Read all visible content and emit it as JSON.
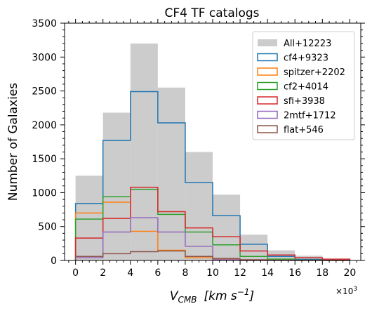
{
  "chart_data": {
    "type": "histogram",
    "title": "CF4 TF catalogs",
    "xlabel_main": "V",
    "xlabel_sub": "CMB",
    "xlabel_units": "[km s",
    "xlabel_exp": "−1",
    "xlabel_close": "]",
    "ylabel": "Number of Galaxies",
    "x_multiplier_base": "×10",
    "x_multiplier_exp": "3",
    "xlim": [
      -0.8,
      20.8
    ],
    "ylim": [
      0,
      3500
    ],
    "bin_edges": [
      0,
      2,
      4,
      6,
      8,
      10,
      12,
      14,
      16,
      18,
      20
    ],
    "x_ticks": [
      0,
      2,
      4,
      6,
      8,
      10,
      12,
      14,
      16,
      18,
      20
    ],
    "x_tick_labels": [
      "0",
      "2",
      "4",
      "6",
      "8",
      "10",
      "12",
      "14",
      "16",
      "18",
      "20"
    ],
    "y_ticks": [
      0,
      500,
      1000,
      1500,
      2000,
      2500,
      3000,
      3500
    ],
    "y_tick_labels": [
      "0",
      "500",
      "1000",
      "1500",
      "2000",
      "2500",
      "3000",
      "3500"
    ],
    "legend_position": "top-right",
    "series": [
      {
        "name": "All+12223",
        "style": "filled",
        "color": "#cccccc",
        "values": [
          1250,
          2180,
          3200,
          2550,
          1600,
          970,
          380,
          150,
          70,
          20
        ]
      },
      {
        "name": "cf4+9323",
        "style": "step",
        "color": "#1f77b4",
        "values": [
          840,
          1770,
          2490,
          2030,
          1150,
          660,
          240,
          60,
          15,
          5
        ]
      },
      {
        "name": "spitzer+2202",
        "style": "step",
        "color": "#ff7f0e",
        "values": [
          700,
          860,
          430,
          150,
          40,
          15,
          5,
          2,
          1,
          0
        ]
      },
      {
        "name": "cf2+4014",
        "style": "step",
        "color": "#2ca02c",
        "values": [
          610,
          940,
          1050,
          680,
          420,
          230,
          60,
          20,
          5,
          2
        ]
      },
      {
        "name": "sfi+3938",
        "style": "step",
        "color": "#d62728",
        "values": [
          330,
          620,
          1080,
          720,
          480,
          350,
          140,
          80,
          40,
          20
        ]
      },
      {
        "name": "2mtf+1712",
        "style": "step",
        "color": "#9467bd",
        "values": [
          40,
          420,
          630,
          420,
          210,
          10,
          0,
          0,
          0,
          0
        ]
      },
      {
        "name": "flat+546",
        "style": "step",
        "color": "#8c564b",
        "values": [
          60,
          100,
          130,
          140,
          60,
          30,
          10,
          5,
          2,
          1
        ]
      }
    ]
  }
}
